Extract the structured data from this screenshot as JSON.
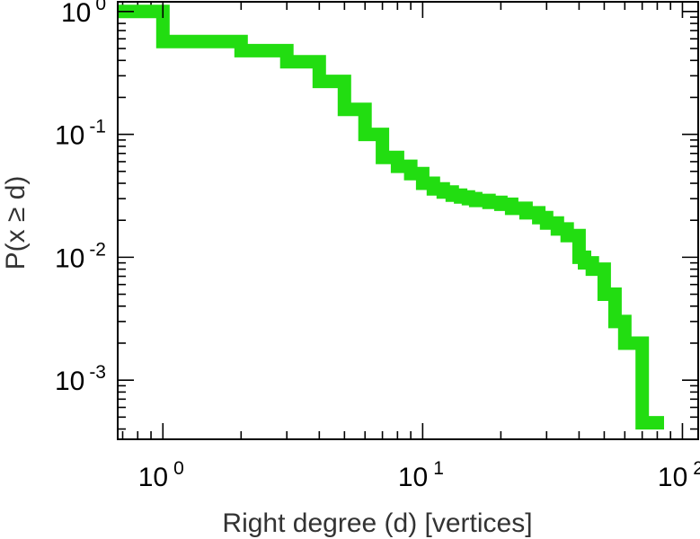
{
  "chart_data": {
    "type": "line",
    "step": true,
    "title": "",
    "xlabel": "Right degree (d) [vertices]",
    "ylabel": "P(x ≥ d)",
    "xscale": "log",
    "yscale": "log",
    "xlim": [
      0.67,
      115
    ],
    "ylim": [
      0.00033,
      1.2
    ],
    "grid": false,
    "legend": "none",
    "x_ticks": [
      {
        "base": "10",
        "exp": "0",
        "value": 1
      },
      {
        "base": "10",
        "exp": "1",
        "value": 10
      },
      {
        "base": "10",
        "exp": "2",
        "value": 100
      }
    ],
    "y_ticks": [
      {
        "base": "10",
        "exp": "0",
        "value": 1
      },
      {
        "base": "10",
        "exp": "-1",
        "value": 0.1
      },
      {
        "base": "10",
        "exp": "-2",
        "value": 0.01
      },
      {
        "base": "10",
        "exp": "-3",
        "value": 0.001
      }
    ],
    "series": [
      {
        "color": "#22dd11",
        "x": [
          0.67,
          1,
          2,
          3,
          4,
          5,
          6,
          7,
          8,
          9,
          10,
          11,
          12,
          13,
          14,
          15,
          16,
          18,
          20,
          22,
          25,
          28,
          30,
          33,
          36,
          40,
          42,
          45,
          50,
          55,
          60,
          70,
          85
        ],
        "y": [
          1.0,
          0.57,
          0.48,
          0.39,
          0.27,
          0.16,
          0.1,
          0.065,
          0.055,
          0.048,
          0.04,
          0.036,
          0.034,
          0.032,
          0.031,
          0.03,
          0.029,
          0.028,
          0.027,
          0.025,
          0.023,
          0.021,
          0.019,
          0.017,
          0.015,
          0.01,
          0.009,
          0.008,
          0.005,
          0.003,
          0.002,
          0.00045,
          0.00045
        ]
      }
    ]
  }
}
